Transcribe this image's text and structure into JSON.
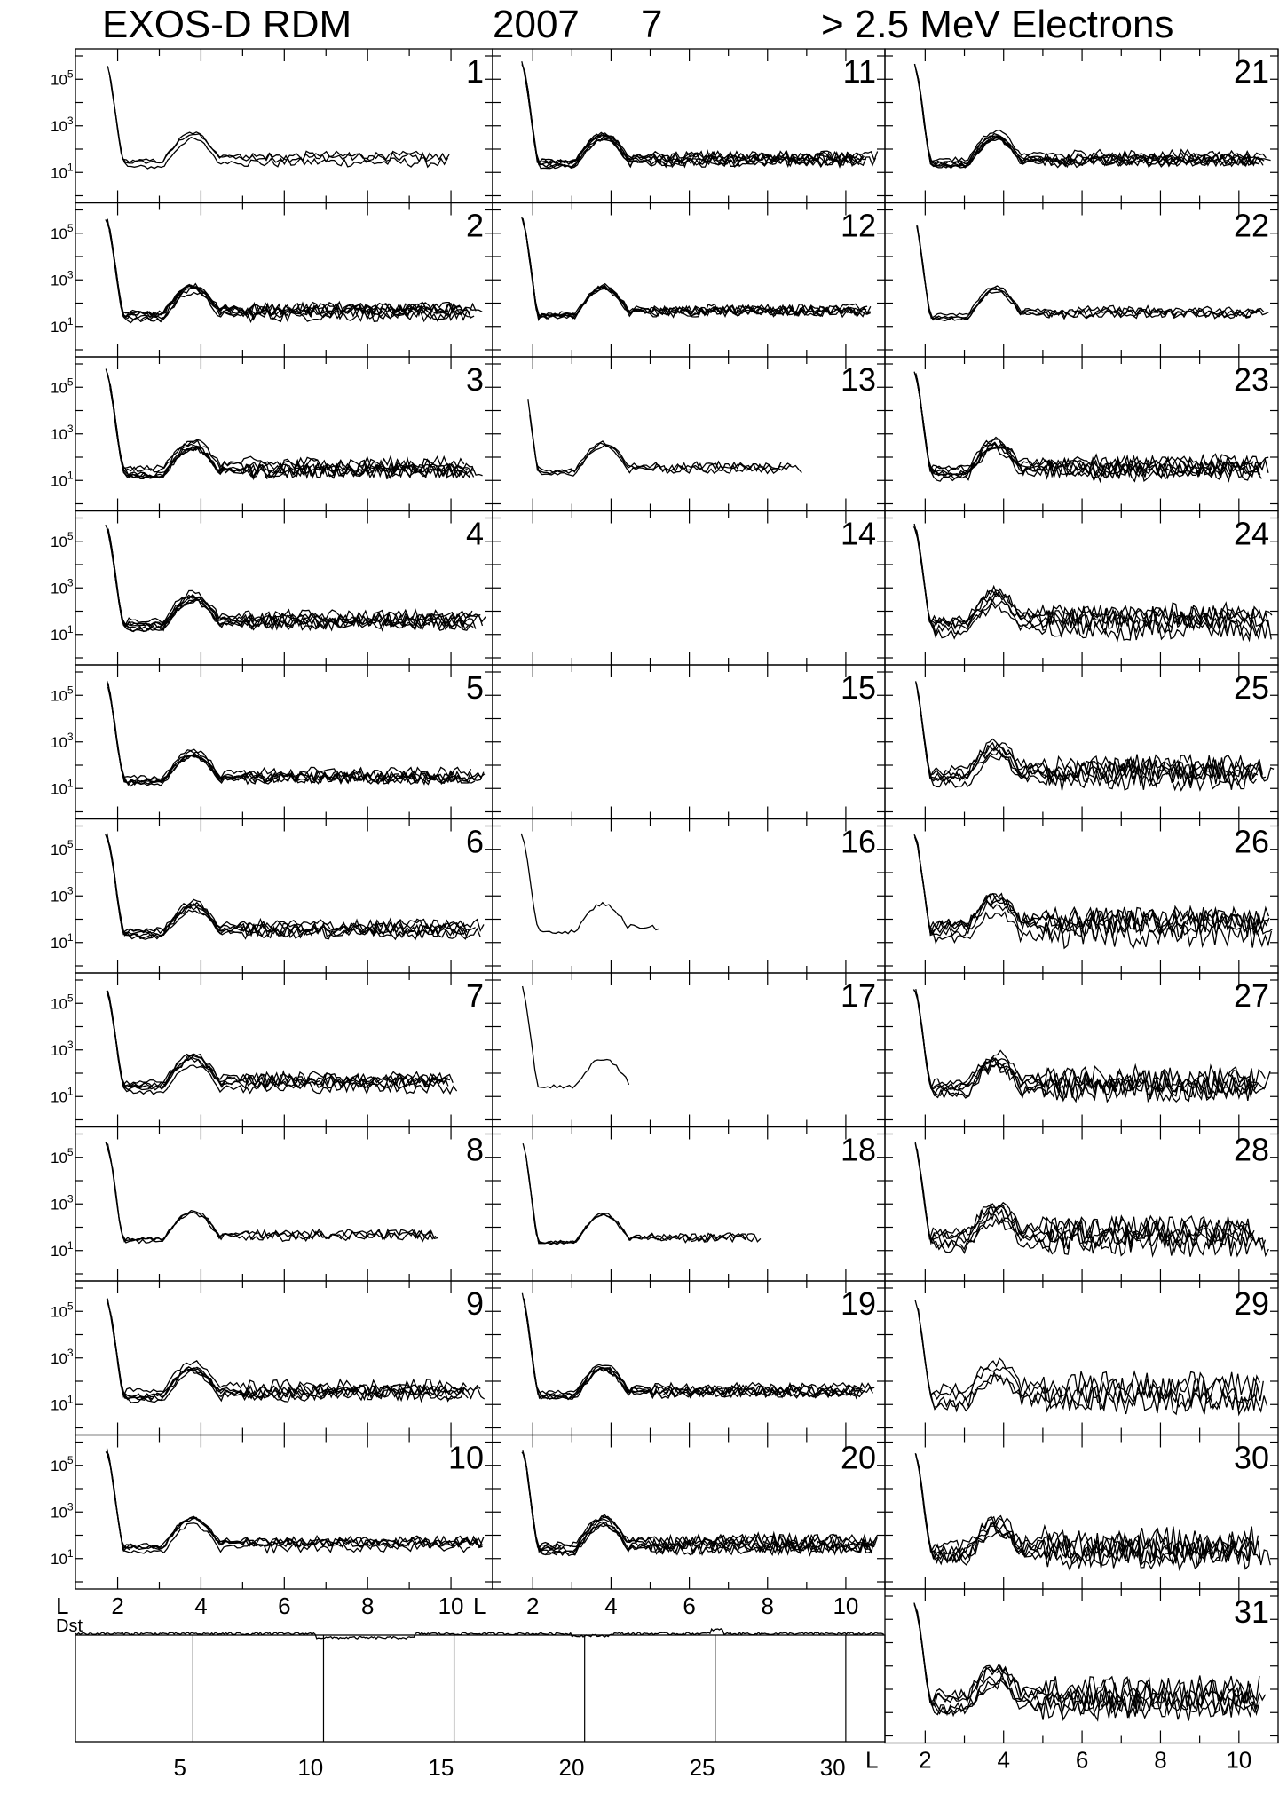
{
  "header": {
    "instrument": "EXOS-D RDM",
    "year": "2007",
    "month": "7",
    "channel": "> 2.5  MeV Electrons"
  },
  "chart_data": {
    "type": "line",
    "xlabel": "L",
    "x_ticks": [
      "2",
      "4",
      "6",
      "8",
      "10"
    ],
    "xlim": [
      1.2,
      11
    ],
    "ylim_log10": [
      0,
      6
    ],
    "y_ticks": [
      {
        "base": "10",
        "exp": "5"
      },
      {
        "base": "10",
        "exp": "3"
      },
      {
        "base": "10",
        "exp": "1"
      }
    ],
    "profile_params": {
      "inner_peak": 5.0,
      "slot_min": 1.4,
      "outer_peak": 2.6,
      "outer_center": 3.8,
      "tail": 1.6
    },
    "days": [
      {
        "day": "1",
        "passes": 3,
        "l_start": 1.7,
        "l_end": 10.2,
        "spread": 0.35
      },
      {
        "day": "2",
        "passes": 7,
        "l_start": 1.7,
        "l_end": 10.9,
        "spread": 0.45
      },
      {
        "day": "3",
        "passes": 7,
        "l_start": 1.7,
        "l_end": 10.9,
        "spread": 0.5
      },
      {
        "day": "4",
        "passes": 7,
        "l_start": 1.7,
        "l_end": 10.9,
        "spread": 0.45
      },
      {
        "day": "5",
        "passes": 6,
        "l_start": 1.7,
        "l_end": 10.9,
        "spread": 0.4
      },
      {
        "day": "6",
        "passes": 6,
        "l_start": 1.7,
        "l_end": 10.9,
        "spread": 0.45
      },
      {
        "day": "7",
        "passes": 6,
        "l_start": 1.7,
        "l_end": 10.2,
        "spread": 0.45
      },
      {
        "day": "8",
        "passes": 3,
        "l_start": 1.7,
        "l_end": 9.8,
        "spread": 0.35
      },
      {
        "day": "9",
        "passes": 6,
        "l_start": 1.7,
        "l_end": 10.9,
        "spread": 0.45
      },
      {
        "day": "10",
        "passes": 5,
        "l_start": 1.7,
        "l_end": 10.9,
        "spread": 0.35
      },
      {
        "day": "11",
        "passes": 7,
        "l_start": 1.7,
        "l_end": 10.9,
        "spread": 0.4
      },
      {
        "day": "12",
        "passes": 6,
        "l_start": 1.7,
        "l_end": 10.9,
        "spread": 0.35
      },
      {
        "day": "13",
        "passes": 3,
        "l_start": 1.8,
        "l_end": 9.0,
        "spread": 0.3
      },
      {
        "day": "14",
        "passes": 0,
        "l_start": 1.7,
        "l_end": 10.9,
        "spread": 0.3
      },
      {
        "day": "15",
        "passes": 0,
        "l_start": 1.7,
        "l_end": 10.9,
        "spread": 0.3
      },
      {
        "day": "16",
        "passes": 1,
        "l_start": 1.7,
        "l_end": 5.3,
        "spread": 0.3
      },
      {
        "day": "17",
        "passes": 1,
        "l_start": 1.7,
        "l_end": 5.0,
        "spread": 0.3
      },
      {
        "day": "18",
        "passes": 3,
        "l_start": 1.7,
        "l_end": 7.9,
        "spread": 0.3
      },
      {
        "day": "19",
        "passes": 6,
        "l_start": 1.7,
        "l_end": 10.9,
        "spread": 0.35
      },
      {
        "day": "20",
        "passes": 7,
        "l_start": 1.7,
        "l_end": 10.9,
        "spread": 0.5
      },
      {
        "day": "21",
        "passes": 7,
        "l_start": 1.7,
        "l_end": 10.9,
        "spread": 0.35
      },
      {
        "day": "22",
        "passes": 4,
        "l_start": 1.7,
        "l_end": 10.9,
        "spread": 0.3
      },
      {
        "day": "23",
        "passes": 7,
        "l_start": 1.7,
        "l_end": 10.9,
        "spread": 0.6
      },
      {
        "day": "24",
        "passes": 6,
        "l_start": 1.7,
        "l_end": 10.9,
        "spread": 0.8
      },
      {
        "day": "25",
        "passes": 6,
        "l_start": 1.7,
        "l_end": 10.9,
        "spread": 0.8
      },
      {
        "day": "26",
        "passes": 6,
        "l_start": 1.7,
        "l_end": 10.9,
        "spread": 0.9
      },
      {
        "day": "27",
        "passes": 6,
        "l_start": 1.7,
        "l_end": 10.9,
        "spread": 0.9
      },
      {
        "day": "28",
        "passes": 6,
        "l_start": 1.7,
        "l_end": 10.9,
        "spread": 0.9
      },
      {
        "day": "29",
        "passes": 4,
        "l_start": 1.7,
        "l_end": 10.9,
        "spread": 1.0
      },
      {
        "day": "30",
        "passes": 6,
        "l_start": 1.7,
        "l_end": 10.9,
        "spread": 1.1
      },
      {
        "day": "31",
        "passes": 6,
        "l_start": 1.7,
        "l_end": 10.9,
        "spread": 1.1
      }
    ],
    "dst": {
      "label": "Dst",
      "x_ticks": [
        "5",
        "10",
        "15",
        "20",
        "25",
        "30"
      ],
      "xlim": [
        1,
        32
      ],
      "markers": [
        5.5,
        10.5,
        15.5,
        20.5,
        25.5,
        30.5
      ]
    }
  },
  "bottom_axis_letter": "L"
}
